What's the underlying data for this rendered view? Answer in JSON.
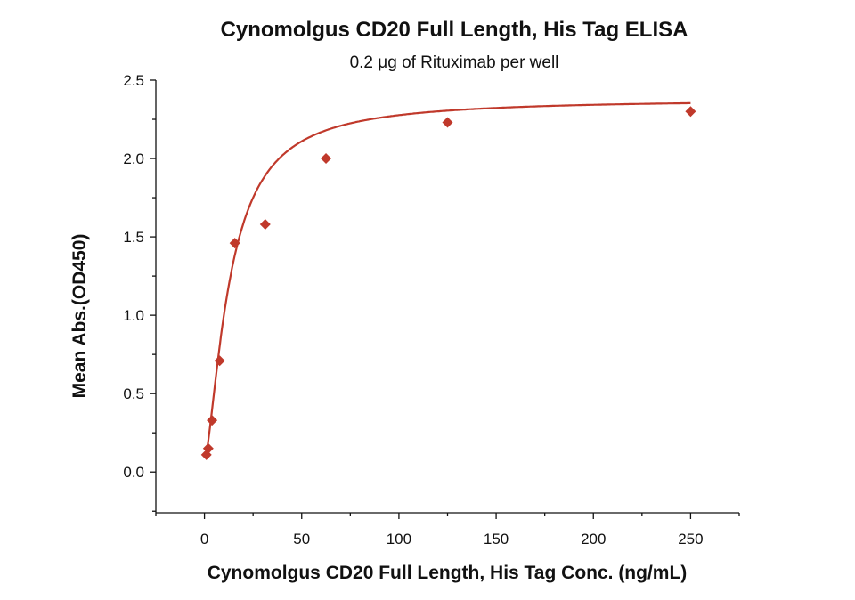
{
  "chart_data": {
    "type": "scatter",
    "title": "Cynomolgus CD20 Full Length, His Tag ELISA",
    "subtitle": "0.2 μg of Rituximab per well",
    "xlabel": "Cynomolgus CD20 Full Length, His Tag Conc. (ng/mL)",
    "ylabel": "Mean Abs.(OD450)",
    "xlim": [
      -25,
      275
    ],
    "ylim": [
      -0.26,
      2.5
    ],
    "x_ticks": [
      0,
      50,
      100,
      150,
      200,
      250
    ],
    "x_tick_labels": [
      "0",
      "50",
      "100",
      "150",
      "200",
      "250"
    ],
    "y_ticks": [
      0.0,
      0.5,
      1.0,
      1.5,
      2.0,
      2.5
    ],
    "y_tick_labels": [
      "0.0",
      "0.5",
      "1.0",
      "1.5",
      "2.0",
      "2.5"
    ],
    "grid": false,
    "legend": "none",
    "series": [
      {
        "marker": "diamond",
        "color": "#c0392b",
        "x": [
          0.98,
          1.95,
          3.9,
          7.8,
          15.6,
          31.25,
          62.5,
          125,
          250
        ],
        "y": [
          0.11,
          0.15,
          0.33,
          0.71,
          1.46,
          1.58,
          2.0,
          2.23,
          2.3
        ]
      }
    ],
    "fit_curve": {
      "type": "4PL",
      "bottom": 0.07,
      "top": 2.38,
      "ec50": 13,
      "hill": 1.5,
      "color": "#c0392b"
    }
  }
}
